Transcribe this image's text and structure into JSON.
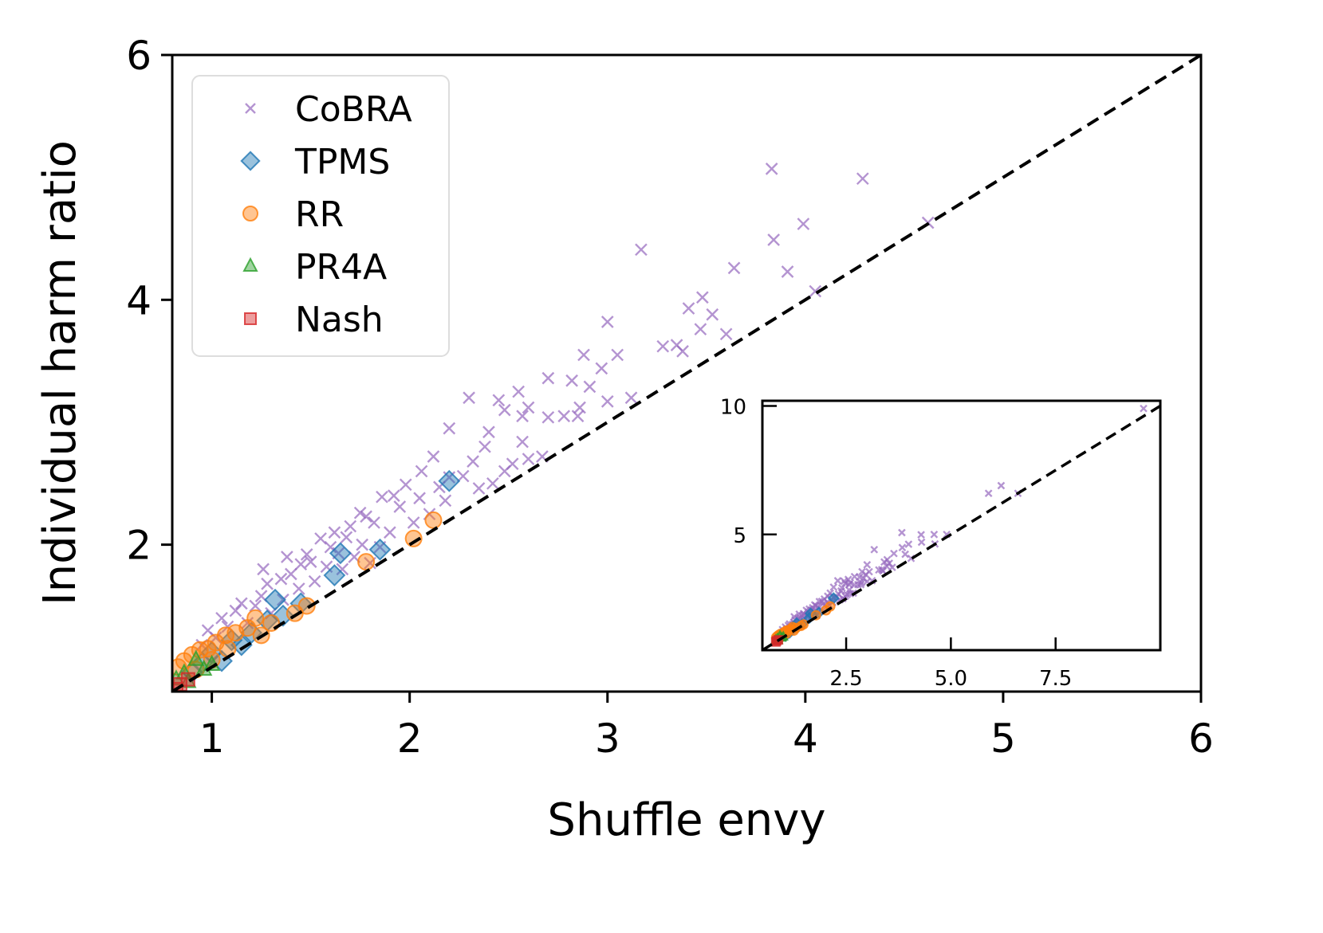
{
  "chart_data": {
    "type": "scatter",
    "xlabel": "Shuffle envy",
    "ylabel": "Individual harm ratio",
    "xlim": [
      0.8,
      6
    ],
    "ylim": [
      0.8,
      6
    ],
    "xticks": [
      "1",
      "2",
      "3",
      "4",
      "5",
      "6"
    ],
    "yticks": [
      "2",
      "4",
      "6"
    ],
    "reference_line": "y = x (dashed black)",
    "legend_position": "top-left",
    "series": [
      {
        "name": "CoBRA",
        "marker": "x",
        "color": "#9467bd",
        "points": [
          [
            3.83,
            5.07
          ],
          [
            4.29,
            4.99
          ],
          [
            4.62,
            4.63
          ],
          [
            3.84,
            4.49
          ],
          [
            3.99,
            4.62
          ],
          [
            3.17,
            4.41
          ],
          [
            3.64,
            4.26
          ],
          [
            3.91,
            4.23
          ],
          [
            3.0,
            3.82
          ],
          [
            3.48,
            4.02
          ],
          [
            3.41,
            3.93
          ],
          [
            3.53,
            3.88
          ],
          [
            3.47,
            3.76
          ],
          [
            3.28,
            3.62
          ],
          [
            3.35,
            3.63
          ],
          [
            3.38,
            3.58
          ],
          [
            2.88,
            3.55
          ],
          [
            3.05,
            3.55
          ],
          [
            2.97,
            3.44
          ],
          [
            2.7,
            3.36
          ],
          [
            2.82,
            3.34
          ],
          [
            2.91,
            3.29
          ],
          [
            2.86,
            3.12
          ],
          [
            3.0,
            3.17
          ],
          [
            2.3,
            3.2
          ],
          [
            2.55,
            3.25
          ],
          [
            2.45,
            3.18
          ],
          [
            2.57,
            3.05
          ],
          [
            2.6,
            3.12
          ],
          [
            2.7,
            3.04
          ],
          [
            2.48,
            3.1
          ],
          [
            2.78,
            3.05
          ],
          [
            2.4,
            2.92
          ],
          [
            2.2,
            2.95
          ],
          [
            2.57,
            2.84
          ],
          [
            2.67,
            2.72
          ],
          [
            2.38,
            2.8
          ],
          [
            2.6,
            2.7
          ],
          [
            2.48,
            2.6
          ],
          [
            2.32,
            2.68
          ],
          [
            2.12,
            2.72
          ],
          [
            2.2,
            2.55
          ],
          [
            2.42,
            2.5
          ],
          [
            2.06,
            2.6
          ],
          [
            1.98,
            2.49
          ],
          [
            2.15,
            2.47
          ],
          [
            2.27,
            2.56
          ],
          [
            2.05,
            2.38
          ],
          [
            1.86,
            2.39
          ],
          [
            1.95,
            2.31
          ],
          [
            2.1,
            2.25
          ],
          [
            1.78,
            2.23
          ],
          [
            1.7,
            2.15
          ],
          [
            1.82,
            2.18
          ],
          [
            1.9,
            2.1
          ],
          [
            1.68,
            2.06
          ],
          [
            1.76,
            2.0
          ],
          [
            1.6,
            1.98
          ],
          [
            1.55,
            2.05
          ],
          [
            1.64,
            1.93
          ],
          [
            1.72,
            1.9
          ],
          [
            1.5,
            1.86
          ],
          [
            1.58,
            1.82
          ],
          [
            1.45,
            1.84
          ],
          [
            1.66,
            1.8
          ],
          [
            1.8,
            1.85
          ],
          [
            1.4,
            1.76
          ],
          [
            1.35,
            1.72
          ],
          [
            1.52,
            1.7
          ],
          [
            1.44,
            1.64
          ],
          [
            1.28,
            1.68
          ],
          [
            1.25,
            1.58
          ],
          [
            1.36,
            1.55
          ],
          [
            1.22,
            1.5
          ],
          [
            1.15,
            1.52
          ],
          [
            1.12,
            1.46
          ],
          [
            1.3,
            1.44
          ],
          [
            1.05,
            1.4
          ],
          [
            1.08,
            1.33
          ],
          [
            1.18,
            1.36
          ],
          [
            0.98,
            1.3
          ],
          [
            1.02,
            1.24
          ],
          [
            0.95,
            1.18
          ],
          [
            1.48,
            1.92
          ],
          [
            1.62,
            2.1
          ],
          [
            1.75,
            2.26
          ],
          [
            1.92,
            2.4
          ],
          [
            2.18,
            2.36
          ],
          [
            2.35,
            2.46
          ],
          [
            2.52,
            2.66
          ],
          [
            2.85,
            3.05
          ],
          [
            3.12,
            3.2
          ],
          [
            3.6,
            3.72
          ],
          [
            4.05,
            4.07
          ],
          [
            1.38,
            1.9
          ],
          [
            1.26,
            1.8
          ],
          [
            1.85,
            1.98
          ],
          [
            2.02,
            2.18
          ]
        ]
      },
      {
        "name": "TPMS",
        "marker": "diamond",
        "color": "#1f77b4",
        "points": [
          [
            2.2,
            2.52
          ],
          [
            1.85,
            1.96
          ],
          [
            1.65,
            1.93
          ],
          [
            1.62,
            1.75
          ],
          [
            1.32,
            1.55
          ],
          [
            1.45,
            1.52
          ],
          [
            1.28,
            1.38
          ],
          [
            1.2,
            1.28
          ],
          [
            1.1,
            1.22
          ],
          [
            1.0,
            1.12
          ],
          [
            0.95,
            1.03
          ],
          [
            1.05,
            1.05
          ],
          [
            0.9,
            0.96
          ],
          [
            1.15,
            1.18
          ],
          [
            1.36,
            1.42
          ]
        ]
      },
      {
        "name": "RR",
        "marker": "circle",
        "color": "#ff7f0e",
        "points": [
          [
            2.12,
            2.2
          ],
          [
            2.02,
            2.05
          ],
          [
            1.78,
            1.86
          ],
          [
            1.48,
            1.5
          ],
          [
            1.42,
            1.44
          ],
          [
            1.3,
            1.36
          ],
          [
            1.22,
            1.4
          ],
          [
            1.18,
            1.32
          ],
          [
            1.12,
            1.28
          ],
          [
            1.07,
            1.26
          ],
          [
            1.02,
            1.2
          ],
          [
            0.98,
            1.15
          ],
          [
            0.94,
            1.14
          ],
          [
            0.9,
            1.1
          ],
          [
            0.86,
            1.05
          ],
          [
            0.83,
            1.0
          ],
          [
            1.0,
            1.06
          ],
          [
            1.08,
            1.15
          ],
          [
            1.25,
            1.26
          ],
          [
            0.92,
            0.98
          ]
        ]
      },
      {
        "name": "PR4A",
        "marker": "triangle",
        "color": "#2ca02c",
        "points": [
          [
            0.92,
            1.06
          ],
          [
            0.86,
            0.95
          ],
          [
            0.82,
            0.9
          ],
          [
            0.96,
            0.98
          ],
          [
            0.88,
            0.88
          ],
          [
            1.0,
            1.02
          ]
        ]
      },
      {
        "name": "Nash",
        "marker": "square",
        "color": "#d62728",
        "points": [
          [
            0.84,
            0.86
          ],
          [
            0.88,
            0.9
          ],
          [
            0.82,
            0.82
          ]
        ]
      }
    ],
    "inset": {
      "xlim": [
        0.5,
        10
      ],
      "ylim": [
        0.5,
        10.2
      ],
      "xticks": [
        "2.5",
        "5.0",
        "7.5"
      ],
      "yticks": [
        "5",
        "10"
      ],
      "reference_line": "y = x (dashed black)",
      "cobra_outliers": [
        [
          9.6,
          9.9
        ],
        [
          6.2,
          6.9
        ],
        [
          5.9,
          6.6
        ],
        [
          6.6,
          6.6
        ],
        [
          4.9,
          5.0
        ],
        [
          4.6,
          5.0
        ],
        [
          4.3,
          4.7
        ]
      ]
    }
  }
}
